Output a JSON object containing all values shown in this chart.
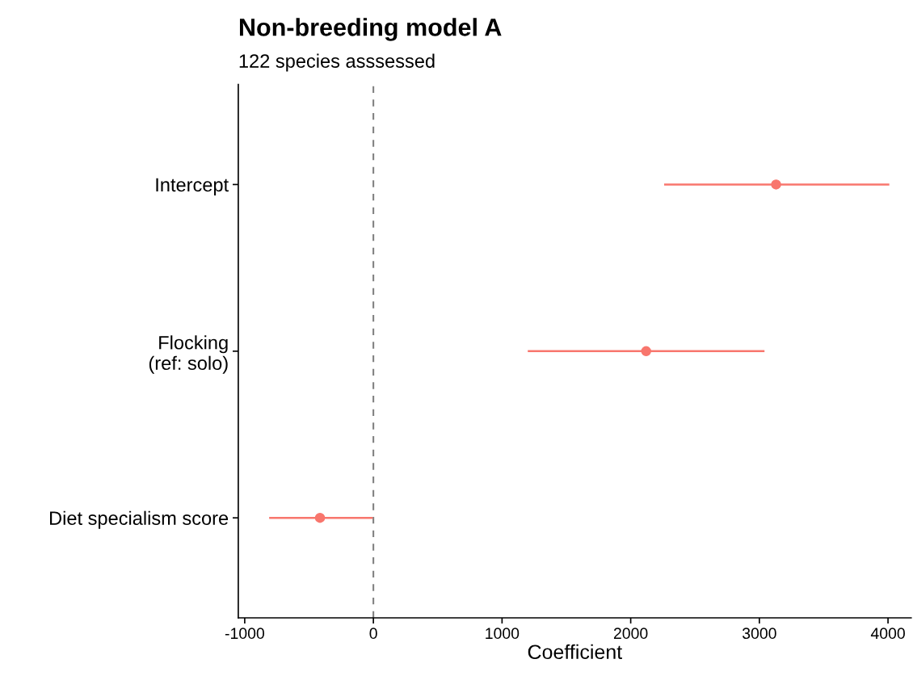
{
  "chart_data": {
    "type": "scatter",
    "orientation": "horizontal",
    "title": "Non-breeding model A",
    "subtitle": "122 species asssessed",
    "xlabel": "Coefficient",
    "categories": [
      "Intercept",
      "Flocking\n(ref: solo)",
      "Diet specialism score"
    ],
    "series": [
      {
        "color": "#f8766d",
        "values": [
          3130,
          2120,
          -415
        ],
        "errors": [
          [
            2260,
            4010
          ],
          [
            1200,
            3040
          ],
          [
            -810,
            -5
          ]
        ]
      }
    ],
    "xlim": [
      -1050,
      4180
    ],
    "xticks": [
      -1000,
      0,
      1000,
      2000,
      3000,
      4000
    ],
    "ref_lines": [
      {
        "axis": "x",
        "value": 0,
        "color": "#808080",
        "line_style": "dashed"
      }
    ],
    "marker": "circle",
    "grid": false,
    "legend": false
  }
}
